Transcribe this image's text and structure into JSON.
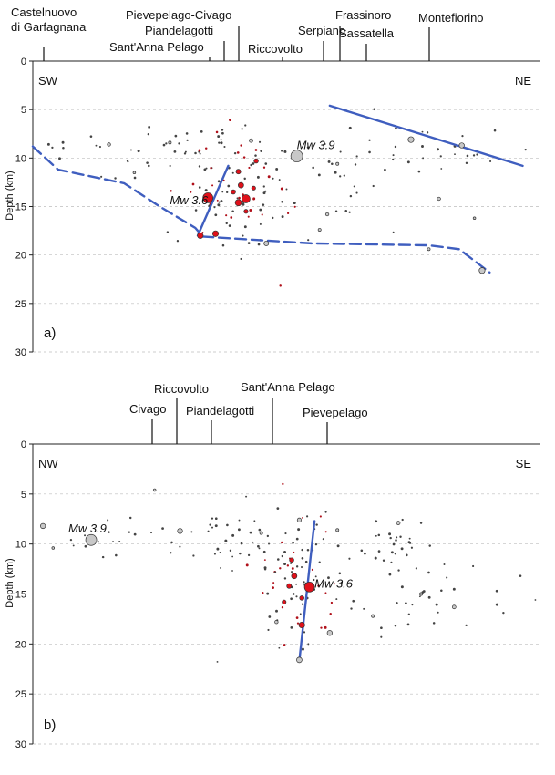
{
  "chart_data": [
    {
      "type": "scatter",
      "panel_label": "a)",
      "ylabel": "Depth (km)",
      "ylim": [
        0,
        30
      ],
      "y_inverted": true,
      "yticks": [
        "0",
        "5",
        "10",
        "15",
        "20",
        "25",
        "30"
      ],
      "grid": "dashed horizontal",
      "left_label": "SW",
      "right_label": "NE",
      "towns": [
        {
          "name": "Castelnuovo",
          "name2": "di Garfagnana",
          "x": 0.04
        },
        {
          "name": "Pievepelago-Civago",
          "x": 0.43
        },
        {
          "name": "Piandelagotti",
          "x": 0.39
        },
        {
          "name": "Sant'Anna Pelago",
          "x": 0.36
        },
        {
          "name": "Riccovolto",
          "x": 0.5
        },
        {
          "name": "Serpiano",
          "x": 0.57
        },
        {
          "name": "Frassinoro",
          "x": 0.6
        },
        {
          "name": "Sassatella",
          "x": 0.65
        },
        {
          "name": "Montefiorino",
          "x": 0.78
        }
      ],
      "annotations": [
        {
          "text": "Mw 3.9",
          "x": 0.52,
          "y": 8.6
        },
        {
          "text": "Mw 3.6",
          "x": 0.27,
          "y": 14.3
        }
      ],
      "lines": [
        {
          "style": "solid",
          "x": [
            0.585,
            0.965
          ],
          "y": [
            4.6,
            10.8
          ]
        },
        {
          "style": "solid",
          "x": [
            0.325,
            0.385
          ],
          "y": [
            18.0,
            10.8
          ]
        },
        {
          "style": "dashed",
          "x": [
            0.0,
            0.05,
            0.18,
            0.25,
            0.32,
            0.335,
            0.55,
            0.78,
            0.84,
            0.9
          ],
          "y": [
            8.8,
            11.2,
            12.6,
            15.0,
            17.2,
            18.1,
            18.8,
            19.0,
            19.4,
            21.8
          ]
        }
      ],
      "events": [
        {
          "x": 0.52,
          "y": 9.8,
          "size": 6.5,
          "color": "#c8c8c8"
        },
        {
          "x": 0.345,
          "y": 14.1,
          "size": 5.5,
          "color": "#e0101a"
        },
        {
          "x": 0.33,
          "y": 18.0,
          "size": 3.2,
          "color": "#e0101a"
        },
        {
          "x": 0.36,
          "y": 17.8,
          "size": 3.2,
          "color": "#e0101a"
        },
        {
          "x": 0.42,
          "y": 14.2,
          "size": 4.5,
          "color": "#e0101a"
        },
        {
          "x": 0.405,
          "y": 14.6,
          "size": 3.5,
          "color": "#e0101a"
        },
        {
          "x": 0.41,
          "y": 12.8,
          "size": 3.0,
          "color": "#e0101a"
        },
        {
          "x": 0.405,
          "y": 11.4,
          "size": 2.6,
          "color": "#e0101a"
        },
        {
          "x": 0.44,
          "y": 10.3,
          "size": 2.4,
          "color": "#e0101a"
        },
        {
          "x": 0.395,
          "y": 13.5,
          "size": 2.4,
          "color": "#e0101a"
        },
        {
          "x": 0.42,
          "y": 15.5,
          "size": 2.2,
          "color": "#e0101a"
        },
        {
          "x": 0.435,
          "y": 13.1,
          "size": 2.2,
          "color": "#e0101a"
        },
        {
          "x": 0.46,
          "y": 18.8,
          "size": 2.6,
          "color": "#c8c8c8"
        },
        {
          "x": 0.885,
          "y": 21.6,
          "size": 3.2,
          "color": "#c8c8c8"
        },
        {
          "x": 0.745,
          "y": 8.1,
          "size": 3.2,
          "color": "#c8c8c8"
        },
        {
          "x": 0.845,
          "y": 8.7,
          "size": 2.8,
          "color": "#c8c8c8"
        },
        {
          "x": 0.43,
          "y": 8.2,
          "size": 2.0,
          "color": "#c8c8c8"
        },
        {
          "x": 0.15,
          "y": 8.6,
          "size": 1.8,
          "color": "#c8c8c8"
        },
        {
          "x": 0.58,
          "y": 15.8,
          "size": 1.8,
          "color": "#c8c8c8"
        },
        {
          "x": 0.8,
          "y": 14.2,
          "size": 1.8,
          "color": "#c8c8c8"
        },
        {
          "x": 0.78,
          "y": 19.4,
          "size": 1.6,
          "color": "#c8c8c8"
        },
        {
          "x": 0.565,
          "y": 17.4,
          "size": 1.6,
          "color": "#c8c8c8"
        },
        {
          "x": 0.27,
          "y": 8.4,
          "size": 1.6,
          "color": "#c8c8c8"
        },
        {
          "x": 0.6,
          "y": 10.6,
          "size": 1.6,
          "color": "#c8c8c8"
        },
        {
          "x": 0.87,
          "y": 16.2,
          "size": 1.4,
          "color": "#c8c8c8"
        },
        {
          "x": 0.2,
          "y": 11.5,
          "size": 1.4,
          "color": "#c8c8c8"
        }
      ],
      "scatter_dots": {
        "count": 190,
        "seed": 11,
        "clusters": [
          {
            "x": 0.41,
            "y": 12.5,
            "sx": 0.06,
            "sy": 3.0,
            "w": 0.5
          },
          {
            "x": 0.3,
            "y": 9.5,
            "sx": 0.08,
            "sy": 1.6,
            "w": 0.15
          },
          {
            "x": 0.6,
            "y": 10.0,
            "sx": 0.08,
            "sy": 2.0,
            "w": 0.12
          },
          {
            "x": 0.82,
            "y": 9.0,
            "sx": 0.07,
            "sy": 1.6,
            "w": 0.13
          },
          {
            "x": 0.08,
            "y": 9.0,
            "sx": 0.05,
            "sy": 1.2,
            "w": 0.05
          },
          {
            "x": 0.55,
            "y": 17.5,
            "sx": 0.15,
            "sy": 2.5,
            "w": 0.05
          }
        ]
      }
    },
    {
      "type": "scatter",
      "panel_label": "b)",
      "ylabel": "Depth (km)",
      "ylim": [
        0,
        30
      ],
      "y_inverted": true,
      "yticks": [
        "0",
        "5",
        "10",
        "15",
        "20",
        "25",
        "30"
      ],
      "grid": "dashed horizontal",
      "left_label": "NW",
      "right_label": "SE",
      "towns": [
        {
          "name": "Civago",
          "x": 0.235
        },
        {
          "name": "Riccovolto",
          "x": 0.285
        },
        {
          "name": "Piandelagotti",
          "x": 0.35
        },
        {
          "name": "Sant'Anna Pelago",
          "x": 0.475
        },
        {
          "name": "Pievepelago",
          "x": 0.585
        }
      ],
      "annotations": [
        {
          "text": "Mw 3.9",
          "x": 0.07,
          "y": 8.4
        },
        {
          "text": "Mw 3.6",
          "x": 0.555,
          "y": 13.9
        }
      ],
      "lines": [
        {
          "style": "solid",
          "x": [
            0.525,
            0.555
          ],
          "y": [
            21.7,
            7.7
          ]
        }
      ],
      "events": [
        {
          "x": 0.115,
          "y": 9.6,
          "size": 6.0,
          "color": "#c8c8c8"
        },
        {
          "x": 0.545,
          "y": 14.3,
          "size": 5.5,
          "color": "#e0101a"
        },
        {
          "x": 0.53,
          "y": 18.1,
          "size": 3.2,
          "color": "#e0101a"
        },
        {
          "x": 0.515,
          "y": 13.2,
          "size": 3.0,
          "color": "#e0101a"
        },
        {
          "x": 0.505,
          "y": 14.2,
          "size": 2.6,
          "color": "#e0101a"
        },
        {
          "x": 0.51,
          "y": 11.6,
          "size": 2.4,
          "color": "#e0101a"
        },
        {
          "x": 0.53,
          "y": 15.4,
          "size": 2.4,
          "color": "#e0101a"
        },
        {
          "x": 0.495,
          "y": 15.8,
          "size": 2.2,
          "color": "#e0101a"
        },
        {
          "x": 0.525,
          "y": 21.6,
          "size": 3.0,
          "color": "#c8c8c8"
        },
        {
          "x": 0.585,
          "y": 18.9,
          "size": 2.8,
          "color": "#c8c8c8"
        },
        {
          "x": 0.02,
          "y": 8.2,
          "size": 2.8,
          "color": "#c8c8c8"
        },
        {
          "x": 0.29,
          "y": 8.7,
          "size": 2.8,
          "color": "#c8c8c8"
        },
        {
          "x": 0.525,
          "y": 7.6,
          "size": 2.2,
          "color": "#c8c8c8"
        },
        {
          "x": 0.72,
          "y": 7.9,
          "size": 2.0,
          "color": "#c8c8c8"
        },
        {
          "x": 0.83,
          "y": 16.3,
          "size": 2.0,
          "color": "#c8c8c8"
        },
        {
          "x": 0.48,
          "y": 17.8,
          "size": 1.8,
          "color": "#c8c8c8"
        },
        {
          "x": 0.67,
          "y": 17.2,
          "size": 1.6,
          "color": "#c8c8c8"
        },
        {
          "x": 0.765,
          "y": 15.0,
          "size": 1.6,
          "color": "#c8c8c8"
        },
        {
          "x": 0.6,
          "y": 8.6,
          "size": 1.6,
          "color": "#c8c8c8"
        },
        {
          "x": 0.45,
          "y": 8.9,
          "size": 1.6,
          "color": "#c8c8c8"
        },
        {
          "x": 0.24,
          "y": 4.6,
          "size": 1.4,
          "color": "#c8c8c8"
        },
        {
          "x": 0.04,
          "y": 10.4,
          "size": 1.4,
          "color": "#c8c8c8"
        }
      ],
      "scatter_dots": {
        "count": 200,
        "seed": 29,
        "clusters": [
          {
            "x": 0.52,
            "y": 13.0,
            "sx": 0.04,
            "sy": 3.0,
            "w": 0.4
          },
          {
            "x": 0.42,
            "y": 9.5,
            "sx": 0.06,
            "sy": 1.4,
            "w": 0.2
          },
          {
            "x": 0.7,
            "y": 9.5,
            "sx": 0.03,
            "sy": 1.2,
            "w": 0.12
          },
          {
            "x": 0.2,
            "y": 9.0,
            "sx": 0.08,
            "sy": 1.4,
            "w": 0.1
          },
          {
            "x": 0.75,
            "y": 15.5,
            "sx": 0.1,
            "sy": 2.5,
            "w": 0.13
          },
          {
            "x": 0.45,
            "y": 18.0,
            "sx": 0.1,
            "sy": 3.0,
            "w": 0.05
          }
        ]
      }
    }
  ]
}
